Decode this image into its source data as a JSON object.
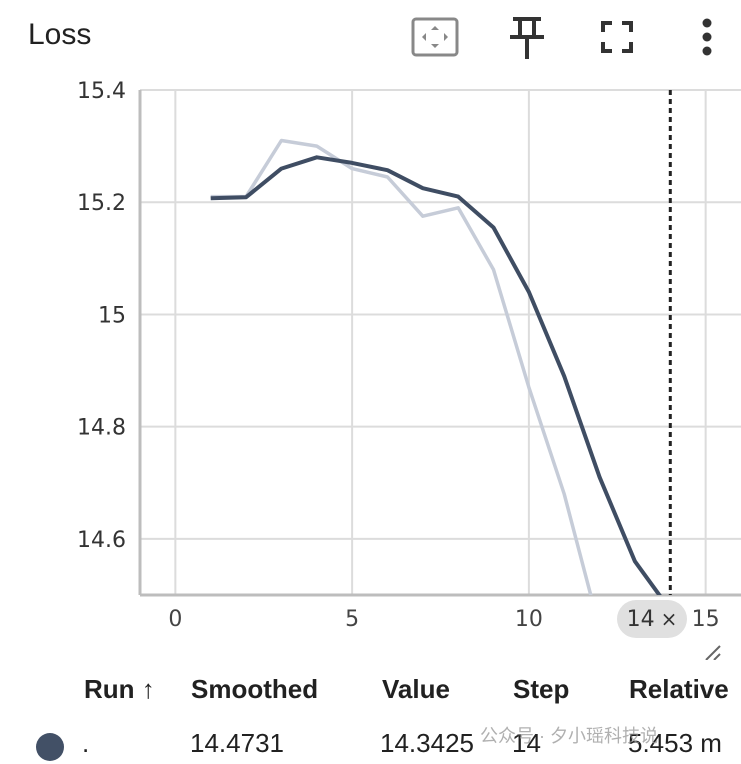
{
  "header": {
    "title": "Loss"
  },
  "toolbar": {
    "fit_icon": "fit-domain-icon",
    "pin_icon": "pin-icon",
    "fullscreen_icon": "fullscreen-icon",
    "menu_icon": "more-vert-icon"
  },
  "colors": {
    "smoothed": "#3f4d63",
    "raw": "#c6ccd8",
    "grid": "#dcdcdc",
    "axis": "#bdbdbd",
    "run_dot": "#425066"
  },
  "chart_data": {
    "type": "line",
    "title": "Loss",
    "xlabel": "",
    "ylabel": "",
    "xlim": [
      -1,
      16
    ],
    "ylim": [
      14.5,
      15.4
    ],
    "x_ticks": [
      0,
      5,
      10,
      15
    ],
    "x_tick_labels": [
      "0",
      "5",
      "10",
      "15"
    ],
    "y_ticks": [
      14.6,
      14.8,
      15,
      15.2,
      15.4
    ],
    "y_tick_labels": [
      "14.6",
      "14.8",
      "15",
      "15.2",
      "15.4"
    ],
    "grid": true,
    "series": [
      {
        "name": "raw",
        "x": [
          1,
          2,
          3,
          4,
          5,
          6,
          7,
          8,
          9,
          10,
          11,
          12,
          13,
          14
        ],
        "y": [
          15.21,
          15.21,
          15.31,
          15.3,
          15.26,
          15.245,
          15.175,
          15.19,
          15.08,
          14.87,
          14.68,
          14.44,
          14.4,
          14.3425
        ]
      },
      {
        "name": "smoothed",
        "x": [
          1,
          2,
          3,
          4,
          5,
          6,
          7,
          8,
          9,
          10,
          11,
          12,
          13,
          14
        ],
        "y": [
          15.207,
          15.209,
          15.26,
          15.28,
          15.27,
          15.257,
          15.225,
          15.21,
          15.155,
          15.04,
          14.89,
          14.71,
          14.56,
          14.4731
        ]
      }
    ],
    "hover_step": 14
  },
  "hover": {
    "step_label": "14",
    "close_glyph": "×"
  },
  "table": {
    "headers": [
      "Run ↑",
      "Smoothed",
      "Value",
      "Step",
      "Relative"
    ],
    "rows": [
      {
        "run": ".",
        "smoothed": "14.4731",
        "value": "14.3425",
        "step": "14",
        "relative": "5.453 m"
      }
    ]
  },
  "watermark": "公众号 · 夕小瑶科技说"
}
